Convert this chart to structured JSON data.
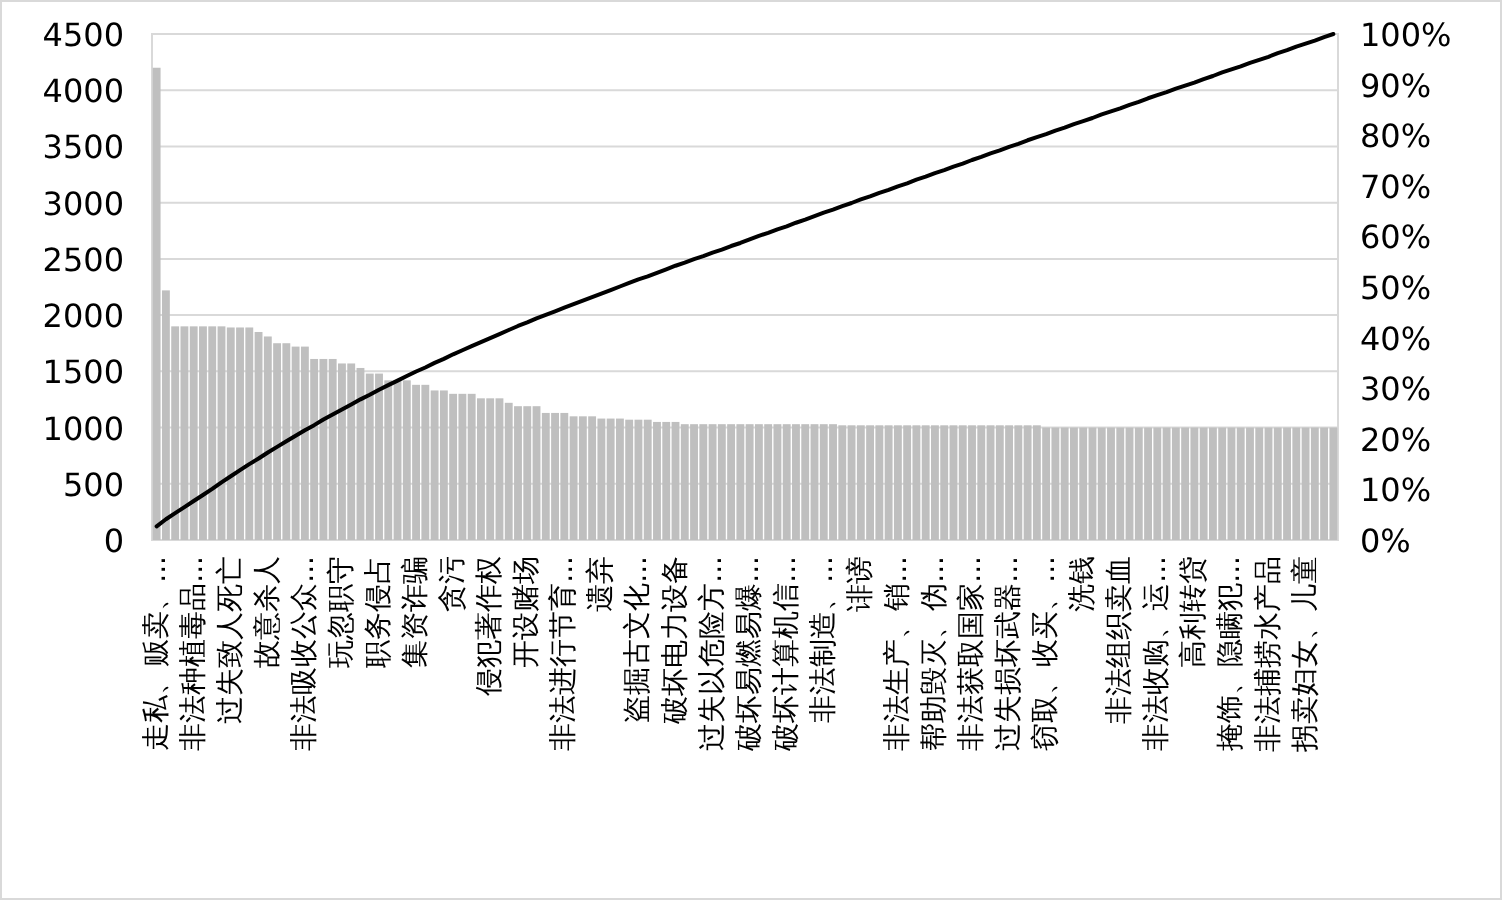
{
  "chart_data": {
    "type": "bar",
    "categories": [
      "走私、贩卖、...",
      null,
      null,
      null,
      "非法种植毒品...",
      null,
      null,
      null,
      "过失致人死亡",
      null,
      null,
      null,
      "故意杀人",
      null,
      null,
      null,
      "非法吸收公众...",
      null,
      null,
      null,
      "玩忽职守",
      null,
      null,
      null,
      "职务侵占",
      null,
      null,
      null,
      "集资诈骗",
      null,
      null,
      null,
      "贪污",
      null,
      null,
      null,
      "侵犯著作权",
      null,
      null,
      null,
      "开设赌场",
      null,
      null,
      null,
      "非法进行节育...",
      null,
      null,
      null,
      "遗弃",
      null,
      null,
      null,
      "盗掘古文化...",
      null,
      null,
      null,
      "破坏电力设备",
      null,
      null,
      null,
      "过失以危险方...",
      null,
      null,
      null,
      "破坏易燃易爆...",
      null,
      null,
      null,
      "破坏计算机信...",
      null,
      null,
      null,
      "非法制造、...",
      null,
      null,
      null,
      "诽谤",
      null,
      null,
      null,
      "非法生产、销...",
      null,
      null,
      null,
      "帮助毁灭、伪...",
      null,
      null,
      null,
      "非法获取国家...",
      null,
      null,
      null,
      "过失损坏武器...",
      null,
      null,
      null,
      "窃取、收买、...",
      null,
      null,
      null,
      "洗钱",
      null,
      null,
      null,
      "非法组织卖血",
      null,
      null,
      null,
      "非法收购、运...",
      null,
      null,
      null,
      "高利转贷",
      null,
      null,
      null,
      "掩饰、隐瞒犯...",
      null,
      null,
      null,
      "非法捕捞水产品",
      null,
      null,
      null,
      "拐卖妇女、儿童",
      null,
      null,
      null
    ],
    "series": [
      {
        "color": "#bfbfbf",
        "values": [
          4200,
          2220,
          1900,
          1900,
          1900,
          1900,
          1900,
          1900,
          1890,
          1890,
          1890,
          1850,
          1810,
          1750,
          1750,
          1720,
          1720,
          1610,
          1610,
          1610,
          1570,
          1570,
          1530,
          1480,
          1480,
          1420,
          1420,
          1420,
          1380,
          1380,
          1330,
          1330,
          1300,
          1300,
          1300,
          1260,
          1260,
          1260,
          1220,
          1190,
          1190,
          1190,
          1130,
          1130,
          1130,
          1100,
          1100,
          1100,
          1080,
          1080,
          1080,
          1070,
          1070,
          1070,
          1050,
          1050,
          1050,
          1030,
          1030,
          1030,
          1030,
          1030,
          1030,
          1030,
          1030,
          1030,
          1030,
          1030,
          1030,
          1030,
          1030,
          1030,
          1030,
          1030,
          1020,
          1020,
          1020,
          1020,
          1020,
          1020,
          1020,
          1020,
          1020,
          1020,
          1020,
          1020,
          1020,
          1020,
          1020,
          1020,
          1020,
          1020,
          1020,
          1020,
          1020,
          1020,
          1000,
          1000,
          1000,
          1000,
          1000,
          1000,
          1000,
          1000,
          1000,
          1000,
          1000,
          1000,
          1000,
          1000,
          1000,
          1000,
          1000,
          1000,
          1000,
          1000,
          1000,
          1000,
          1000,
          1000,
          1000,
          1000,
          1000,
          1000,
          1000,
          1000,
          1000,
          1000
        ]
      },
      {
        "type": "line",
        "axis": "y2",
        "color": "#000000",
        "values": [
          2.7,
          4.1,
          5.3,
          6.5,
          7.7,
          8.9,
          10.1,
          11.4,
          12.6,
          13.8,
          15.0,
          16.1,
          17.3,
          18.4,
          19.5,
          20.6,
          21.7,
          22.7,
          23.8,
          24.8,
          25.8,
          26.8,
          27.8,
          28.7,
          29.7,
          30.6,
          31.5,
          32.4,
          33.3,
          34.1,
          35.0,
          35.8,
          36.7,
          37.5,
          38.3,
          39.1,
          39.9,
          40.7,
          41.5,
          42.3,
          43.0,
          43.8,
          44.5,
          45.2,
          45.9,
          46.6,
          47.3,
          48.0,
          48.7,
          49.4,
          50.1,
          50.8,
          51.5,
          52.1,
          52.8,
          53.5,
          54.2,
          54.8,
          55.5,
          56.1,
          56.8,
          57.4,
          58.1,
          58.7,
          59.4,
          60.1,
          60.7,
          61.4,
          62.0,
          62.7,
          63.3,
          64.0,
          64.7,
          65.3,
          66.0,
          66.6,
          67.3,
          67.9,
          68.6,
          69.2,
          69.9,
          70.5,
          71.2,
          71.8,
          72.5,
          73.1,
          73.8,
          74.4,
          75.1,
          75.7,
          76.4,
          77.0,
          77.7,
          78.3,
          79.0,
          79.6,
          80.2,
          80.9,
          81.5,
          82.2,
          82.8,
          83.4,
          84.1,
          84.7,
          85.3,
          86.0,
          86.6,
          87.3,
          87.9,
          88.5,
          89.2,
          89.8,
          90.4,
          91.1,
          91.7,
          92.4,
          93.0,
          93.6,
          94.3,
          94.9,
          95.5,
          96.2,
          96.8,
          97.5,
          98.1,
          98.7,
          99.4,
          100
        ]
      }
    ],
    "ylim": [
      0,
      4500
    ],
    "yticks": [
      0,
      500,
      1000,
      1500,
      2000,
      2500,
      3000,
      3500,
      4000,
      4500
    ],
    "y2lim": [
      0,
      100
    ],
    "y2ticks": [
      {
        "value": 0,
        "label": "0%"
      },
      {
        "value": 10,
        "label": "10%"
      },
      {
        "value": 20,
        "label": "20%"
      },
      {
        "value": 30,
        "label": "30%"
      },
      {
        "value": 40,
        "label": "40%"
      },
      {
        "value": 50,
        "label": "50%"
      },
      {
        "value": 60,
        "label": "60%"
      },
      {
        "value": 70,
        "label": "70%"
      },
      {
        "value": 80,
        "label": "80%"
      },
      {
        "value": 90,
        "label": "90%"
      },
      {
        "value": 100,
        "label": "100%"
      }
    ],
    "grid": "y"
  }
}
